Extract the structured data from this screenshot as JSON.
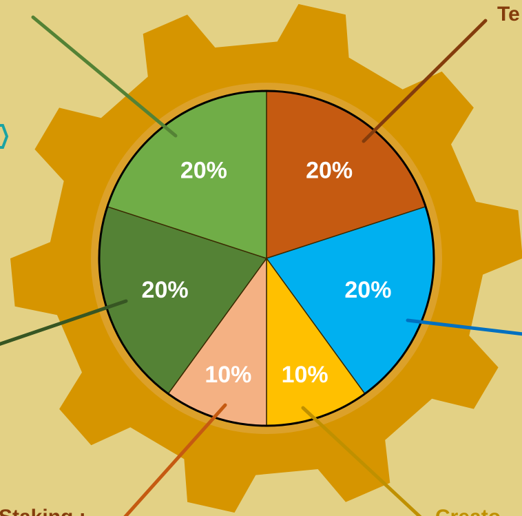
{
  "chart_data": {
    "type": "pie",
    "categories": [
      "Te",
      null,
      "Creato",
      "Staking :",
      null,
      null
    ],
    "values": [
      20,
      20,
      10,
      10,
      20,
      20
    ],
    "value_labels": [
      "20%",
      "20%",
      "10%",
      "10%",
      "20%",
      "20%"
    ],
    "colors": [
      "#c55a11",
      "#00b0f0",
      "#ffc000",
      "#f4b183",
      "#548235",
      "#70ad47"
    ]
  }
}
